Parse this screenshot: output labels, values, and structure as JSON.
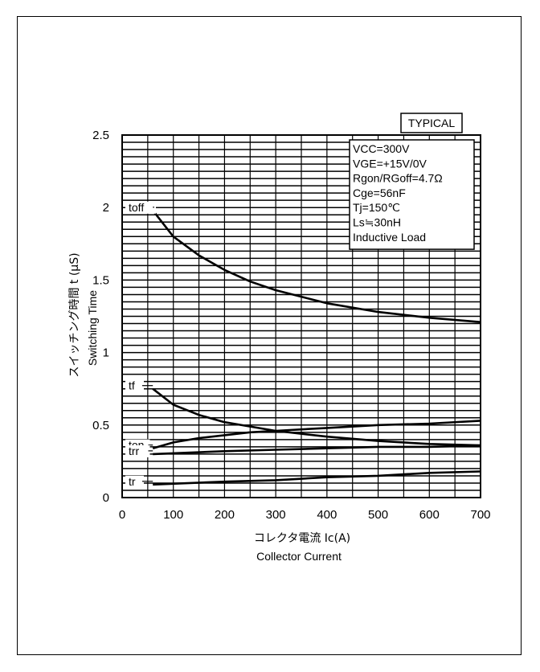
{
  "chart_data": {
    "type": "line",
    "badge": "TYPICAL",
    "xlabel_jp": "コレクタ電流 Ic(A)",
    "xlabel_en": "Collector Current",
    "ylabel_jp": "スイッチング時間 t (μS)",
    "ylabel_en": "Switching Time",
    "xlim": [
      0,
      700
    ],
    "ylim": [
      0,
      2.5
    ],
    "x_ticks": [
      "0",
      "100",
      "200",
      "300",
      "400",
      "500",
      "600",
      "700"
    ],
    "y_ticks": [
      "0",
      "0.5",
      "1",
      "1.5",
      "2",
      "2.5"
    ],
    "conditions": [
      "VCC=300V",
      "VGE=+15V/0V",
      "Rgon/RGoff=4.7Ω",
      "Cge=56nF",
      "Tj=150℃",
      "Ls≒30nH",
      "Inductive Load"
    ],
    "series": [
      {
        "name": "toff",
        "x": [
          60,
          100,
          150,
          200,
          250,
          300,
          400,
          500,
          600,
          700
        ],
        "y": [
          1.98,
          1.8,
          1.67,
          1.57,
          1.49,
          1.43,
          1.34,
          1.28,
          1.24,
          1.21
        ]
      },
      {
        "name": "tf",
        "x": [
          60,
          100,
          150,
          200,
          250,
          300,
          400,
          500,
          600,
          700
        ],
        "y": [
          0.75,
          0.64,
          0.57,
          0.52,
          0.49,
          0.46,
          0.42,
          0.39,
          0.37,
          0.36
        ]
      },
      {
        "name": "ton",
        "x": [
          60,
          100,
          150,
          200,
          250,
          300,
          400,
          500,
          600,
          700
        ],
        "y": [
          0.34,
          0.38,
          0.41,
          0.43,
          0.45,
          0.46,
          0.48,
          0.5,
          0.51,
          0.53
        ]
      },
      {
        "name": "trr",
        "x": [
          60,
          200,
          300,
          400,
          500,
          600,
          700
        ],
        "y": [
          0.3,
          0.32,
          0.33,
          0.34,
          0.35,
          0.35,
          0.36
        ]
      },
      {
        "name": "tr",
        "x": [
          60,
          200,
          300,
          400,
          500,
          600,
          700
        ],
        "y": [
          0.09,
          0.11,
          0.12,
          0.14,
          0.15,
          0.17,
          0.18
        ]
      }
    ]
  }
}
